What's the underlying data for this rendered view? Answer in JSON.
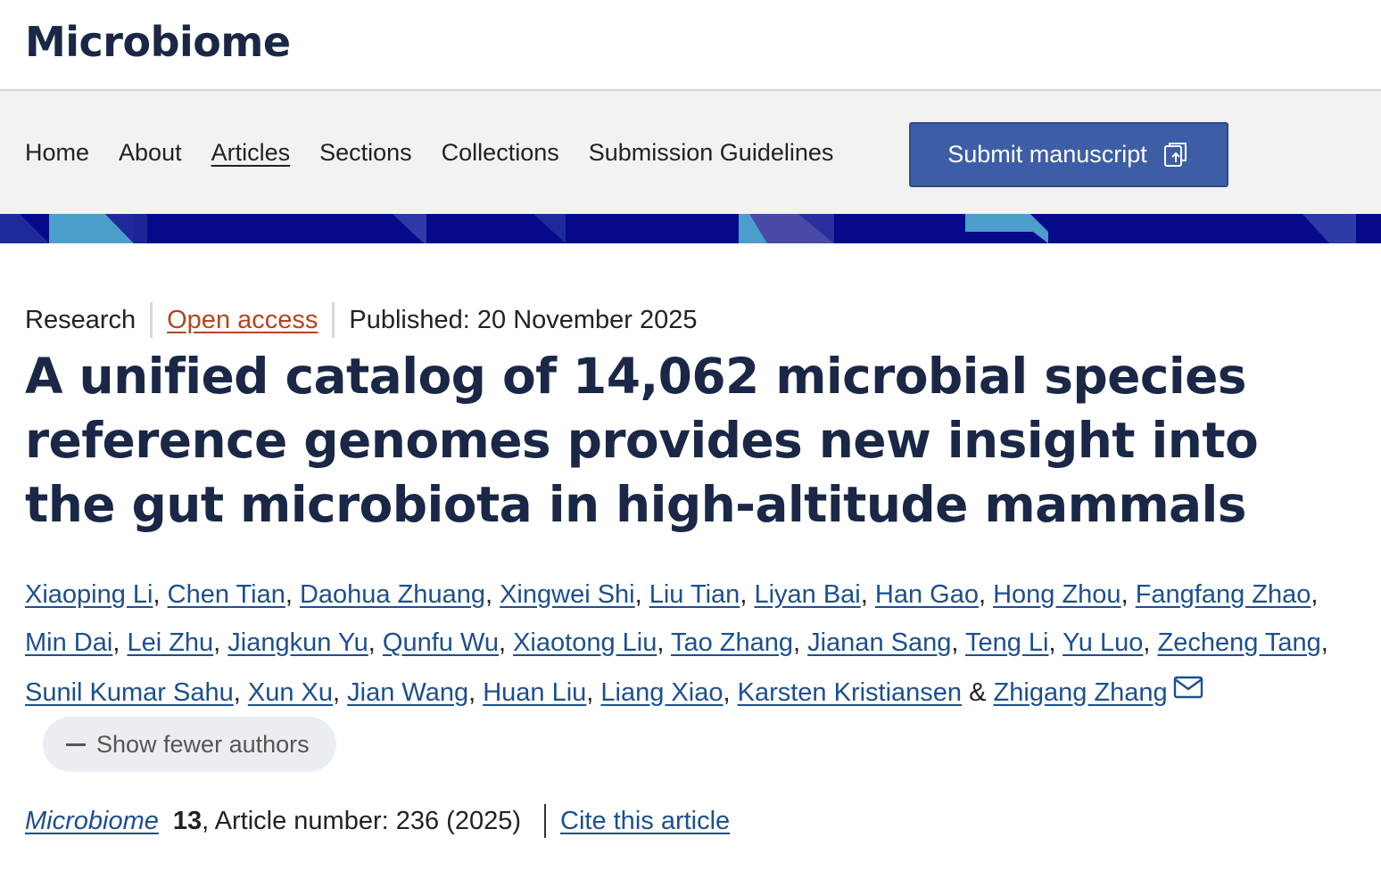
{
  "header": {
    "journal_name": "Microbiome"
  },
  "nav": {
    "items": [
      {
        "label": "Home"
      },
      {
        "label": "About"
      },
      {
        "label": "Articles"
      },
      {
        "label": "Sections"
      },
      {
        "label": "Collections"
      },
      {
        "label": "Submission Guidelines"
      }
    ],
    "submit_label": "Submit manuscript"
  },
  "colors": {
    "brand_dark": "#1a2746",
    "banner": "#050a8a",
    "submit_button": "#3d5ea6",
    "link": "#1c4f8f",
    "open_access": "#b3461f"
  },
  "article": {
    "type": "Research",
    "open_access": "Open access",
    "published": "Published: 20 November 2025",
    "title": "A unified catalog of 14,062 microbial species reference genomes provides new insight into the gut microbiota in high-altitude mammals",
    "authors": [
      "Xiaoping Li",
      "Chen Tian",
      "Daohua Zhuang",
      "Xingwei Shi",
      "Liu Tian",
      "Liyan Bai",
      "Han Gao",
      "Hong Zhou",
      "Fangfang Zhao",
      "Min Dai",
      "Lei Zhu",
      "Jiangkun Yu",
      "Qunfu Wu",
      "Xiaotong Liu",
      "Tao Zhang",
      "Jianan Sang",
      "Teng Li",
      "Yu Luo",
      "Zecheng Tang",
      "Sunil Kumar Sahu",
      "Xun Xu",
      "Jian Wang",
      "Huan Liu",
      "Liang Xiao",
      "Karsten Kristiansen",
      "Zhigang Zhang"
    ],
    "show_fewer_label": "Show fewer authors",
    "citation": {
      "journal": "Microbiome",
      "volume": "13",
      "article_number": ", Article number: 236 (2025)",
      "cite_label": "Cite this article"
    }
  }
}
